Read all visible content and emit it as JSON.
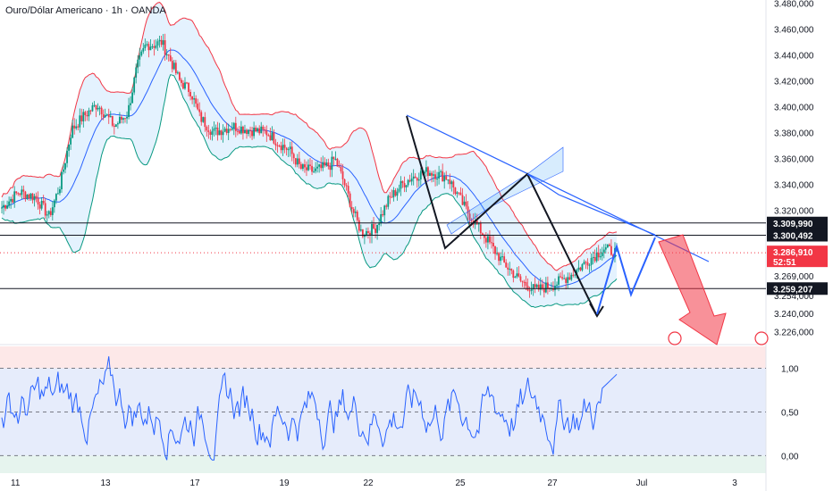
{
  "header": {
    "title": "Ouro/Dólar Americano · 1h · OANDA"
  },
  "colors": {
    "up": "#089981",
    "down": "#f23645",
    "bb_upper": "#f23645",
    "bb_lower": "#089981",
    "bb_basis": "#2962ff",
    "bb_fill": "#2196f3",
    "rsi": "#2962ff",
    "pattern": "#131722",
    "projection": "#2962ff",
    "arrow": "#f23645"
  },
  "chart_data": {
    "type": "candlestick",
    "title": "Ouro/Dólar Americano · 1h · OANDA",
    "x_ticks": [
      "11",
      "13",
      "17",
      "19",
      "22",
      "25",
      "27",
      "Jul",
      "3"
    ],
    "price_axis": {
      "ylim": [
        3220,
        3486
      ],
      "ticks": [
        "3.480,000",
        "3.460,000",
        "3.440,000",
        "3.420,000",
        "3.400,000",
        "3.380,000",
        "3.360,000",
        "3.340,000",
        "3.320,000",
        "3.269,000",
        "3.254,000",
        "3.240,000",
        "3.226,000"
      ]
    },
    "tags": [
      {
        "label": "3.309,990",
        "price": 3309.99,
        "style": "line"
      },
      {
        "label": "3.300,492",
        "price": 3300.492,
        "style": "line"
      },
      {
        "label": "3.286,910",
        "countdown": "52:51",
        "price": 3286.91,
        "style": "current"
      },
      {
        "label": "3.259,207",
        "price": 3259.207,
        "style": "line"
      }
    ],
    "oscillator": {
      "ylim": [
        -0.2,
        1.25
      ],
      "ticks": [
        "1,00",
        "0,50",
        "0,00"
      ],
      "levels": [
        1.0,
        0.5,
        0.0
      ]
    }
  }
}
